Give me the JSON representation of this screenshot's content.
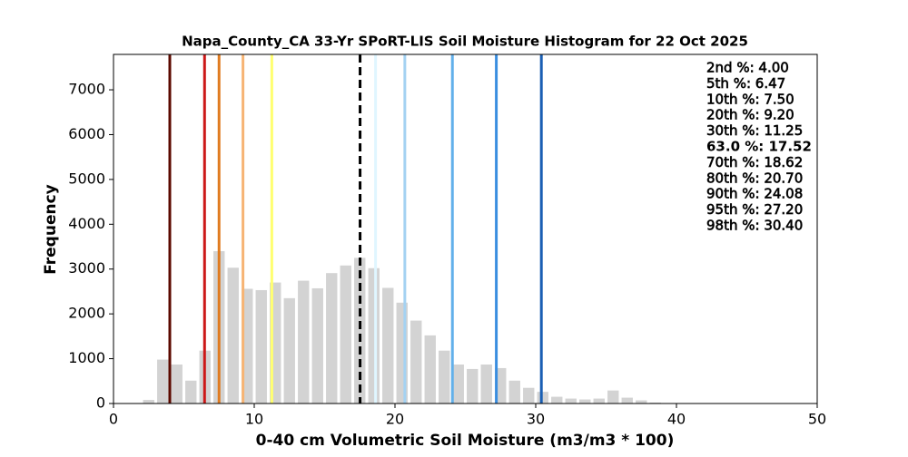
{
  "chart_data": {
    "type": "histogram",
    "title": "Napa_County_CA 33-Yr SPoRT-LIS Soil Moisture Histogram for 22 Oct 2025",
    "x_label": "0-40 cm Volumetric Soil Moisture (m3/m3 * 100)",
    "y_label": "Frequency",
    "bins": [
      2,
      3,
      4,
      5,
      6,
      7,
      8,
      9,
      10,
      11,
      12,
      13,
      14,
      15,
      16,
      17,
      18,
      19,
      20,
      21,
      22,
      23,
      24,
      25,
      26,
      27,
      28,
      29,
      30,
      31,
      32,
      33,
      34,
      35,
      36,
      37,
      38,
      39,
      40
    ],
    "values": [
      80,
      980,
      870,
      510,
      1180,
      3400,
      3030,
      2560,
      2530,
      2700,
      2350,
      2740,
      2570,
      2910,
      3080,
      3250,
      3020,
      2580,
      2250,
      1850,
      1520,
      1180,
      870,
      770,
      870,
      790,
      510,
      350,
      260,
      150,
      110,
      90,
      110,
      290,
      130,
      70,
      20,
      10
    ],
    "color": "#d3d3d3",
    "xlim": [
      0,
      50
    ],
    "xticks": [
      0,
      10,
      20,
      30,
      40,
      50
    ],
    "ylim": [
      0,
      7790
    ],
    "yticks": [
      0,
      1000,
      2000,
      3000,
      4000,
      5000,
      6000,
      7000
    ],
    "lines": [
      {
        "label": "2nd %: 4.00",
        "value": 4.0,
        "color": "#5c0a00",
        "dash": false
      },
      {
        "label": "5th %: 6.47",
        "value": 6.47,
        "color": "#cc1818",
        "dash": false
      },
      {
        "label": "10th %: 7.50",
        "value": 7.5,
        "color": "#e07b20",
        "dash": false
      },
      {
        "label": "20th %: 9.20",
        "value": 9.2,
        "color": "#f7b474",
        "dash": false
      },
      {
        "label": "30th %: 11.25",
        "value": 11.25,
        "color": "#ffff70",
        "dash": false
      },
      {
        "label": "63.0 %: 17.52",
        "value": 17.52,
        "color": "#000000",
        "dash": true
      },
      {
        "label": "70th %: 18.62",
        "value": 18.62,
        "color": "#e0f6ff",
        "dash": false
      },
      {
        "label": "80th %: 20.70",
        "value": 20.7,
        "color": "#a4d2f2",
        "dash": false
      },
      {
        "label": "90th %: 24.08",
        "value": 24.08,
        "color": "#62b0ea",
        "dash": false
      },
      {
        "label": "95th %: 27.20",
        "value": 27.2,
        "color": "#3a8ee0",
        "dash": false
      },
      {
        "label": "98th %: 30.40",
        "value": 30.4,
        "color": "#1a5fb4",
        "dash": false
      }
    ]
  }
}
